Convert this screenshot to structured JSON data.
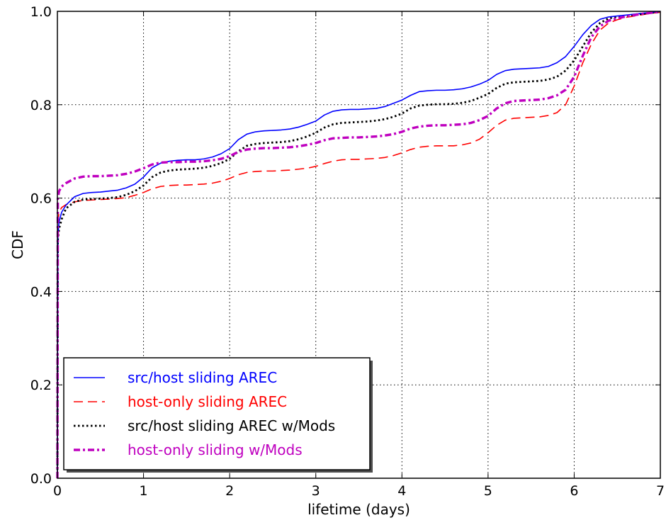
{
  "chart_data": {
    "type": "line",
    "title": "",
    "xlabel": "lifetime (days)",
    "ylabel": "CDF",
    "xlim": [
      0,
      7
    ],
    "ylim": [
      0.0,
      1.0
    ],
    "xticks": [
      "0",
      "1",
      "2",
      "3",
      "4",
      "5",
      "6",
      "7"
    ],
    "yticks": [
      "0.0",
      "0.2",
      "0.4",
      "0.6",
      "0.8",
      "1.0"
    ],
    "grid": true,
    "legend_position": "lower-left",
    "series": [
      {
        "name": "src/host sliding AREC",
        "color": "#0000ff",
        "style": "solid",
        "points": [
          [
            0,
            0.0
          ],
          [
            0.005,
            0.52
          ],
          [
            0.02,
            0.55
          ],
          [
            0.05,
            0.57
          ],
          [
            0.1,
            0.585
          ],
          [
            0.2,
            0.603
          ],
          [
            0.3,
            0.61
          ],
          [
            0.4,
            0.612
          ],
          [
            0.5,
            0.613
          ],
          [
            0.6,
            0.615
          ],
          [
            0.7,
            0.617
          ],
          [
            0.8,
            0.622
          ],
          [
            0.9,
            0.63
          ],
          [
            1.0,
            0.645
          ],
          [
            1.1,
            0.665
          ],
          [
            1.2,
            0.675
          ],
          [
            1.3,
            0.679
          ],
          [
            1.4,
            0.681
          ],
          [
            1.5,
            0.682
          ],
          [
            1.6,
            0.682
          ],
          [
            1.7,
            0.684
          ],
          [
            1.8,
            0.688
          ],
          [
            1.9,
            0.695
          ],
          [
            2.0,
            0.706
          ],
          [
            2.1,
            0.725
          ],
          [
            2.2,
            0.737
          ],
          [
            2.3,
            0.742
          ],
          [
            2.4,
            0.744
          ],
          [
            2.5,
            0.745
          ],
          [
            2.6,
            0.746
          ],
          [
            2.7,
            0.748
          ],
          [
            2.8,
            0.752
          ],
          [
            2.9,
            0.758
          ],
          [
            3.0,
            0.765
          ],
          [
            3.1,
            0.778
          ],
          [
            3.2,
            0.786
          ],
          [
            3.3,
            0.789
          ],
          [
            3.4,
            0.79
          ],
          [
            3.5,
            0.79
          ],
          [
            3.6,
            0.791
          ],
          [
            3.7,
            0.792
          ],
          [
            3.8,
            0.796
          ],
          [
            3.9,
            0.803
          ],
          [
            4.0,
            0.81
          ],
          [
            4.1,
            0.82
          ],
          [
            4.2,
            0.828
          ],
          [
            4.3,
            0.83
          ],
          [
            4.4,
            0.831
          ],
          [
            4.5,
            0.831
          ],
          [
            4.6,
            0.832
          ],
          [
            4.7,
            0.834
          ],
          [
            4.8,
            0.838
          ],
          [
            4.9,
            0.844
          ],
          [
            5.0,
            0.852
          ],
          [
            5.1,
            0.865
          ],
          [
            5.2,
            0.873
          ],
          [
            5.3,
            0.876
          ],
          [
            5.4,
            0.877
          ],
          [
            5.5,
            0.878
          ],
          [
            5.6,
            0.879
          ],
          [
            5.7,
            0.882
          ],
          [
            5.8,
            0.89
          ],
          [
            5.9,
            0.903
          ],
          [
            6.0,
            0.925
          ],
          [
            6.1,
            0.95
          ],
          [
            6.2,
            0.97
          ],
          [
            6.3,
            0.983
          ],
          [
            6.4,
            0.988
          ],
          [
            6.5,
            0.99
          ],
          [
            6.6,
            0.992
          ],
          [
            6.7,
            0.994
          ],
          [
            6.8,
            0.996
          ],
          [
            6.9,
            0.998
          ],
          [
            7.0,
            1.0
          ]
        ]
      },
      {
        "name": "host-only sliding AREC",
        "color": "#ff0000",
        "style": "dashed",
        "points": [
          [
            0,
            0.0
          ],
          [
            0.005,
            0.55
          ],
          [
            0.02,
            0.57
          ],
          [
            0.05,
            0.58
          ],
          [
            0.1,
            0.586
          ],
          [
            0.2,
            0.592
          ],
          [
            0.3,
            0.595
          ],
          [
            0.4,
            0.596
          ],
          [
            0.5,
            0.597
          ],
          [
            0.6,
            0.598
          ],
          [
            0.7,
            0.599
          ],
          [
            0.8,
            0.601
          ],
          [
            0.9,
            0.606
          ],
          [
            1.0,
            0.612
          ],
          [
            1.1,
            0.62
          ],
          [
            1.2,
            0.625
          ],
          [
            1.3,
            0.627
          ],
          [
            1.4,
            0.628
          ],
          [
            1.5,
            0.628
          ],
          [
            1.6,
            0.629
          ],
          [
            1.7,
            0.63
          ],
          [
            1.8,
            0.632
          ],
          [
            1.9,
            0.636
          ],
          [
            2.0,
            0.642
          ],
          [
            2.1,
            0.65
          ],
          [
            2.2,
            0.655
          ],
          [
            2.3,
            0.657
          ],
          [
            2.4,
            0.658
          ],
          [
            2.5,
            0.658
          ],
          [
            2.6,
            0.659
          ],
          [
            2.7,
            0.66
          ],
          [
            2.8,
            0.662
          ],
          [
            2.9,
            0.664
          ],
          [
            3.0,
            0.668
          ],
          [
            3.1,
            0.674
          ],
          [
            3.2,
            0.679
          ],
          [
            3.3,
            0.682
          ],
          [
            3.4,
            0.683
          ],
          [
            3.5,
            0.683
          ],
          [
            3.6,
            0.684
          ],
          [
            3.7,
            0.685
          ],
          [
            3.8,
            0.687
          ],
          [
            3.9,
            0.691
          ],
          [
            4.0,
            0.697
          ],
          [
            4.1,
            0.704
          ],
          [
            4.2,
            0.709
          ],
          [
            4.3,
            0.711
          ],
          [
            4.4,
            0.712
          ],
          [
            4.5,
            0.712
          ],
          [
            4.6,
            0.712
          ],
          [
            4.7,
            0.714
          ],
          [
            4.8,
            0.718
          ],
          [
            4.9,
            0.726
          ],
          [
            5.0,
            0.74
          ],
          [
            5.1,
            0.756
          ],
          [
            5.2,
            0.767
          ],
          [
            5.3,
            0.771
          ],
          [
            5.4,
            0.772
          ],
          [
            5.5,
            0.773
          ],
          [
            5.6,
            0.774
          ],
          [
            5.7,
            0.777
          ],
          [
            5.8,
            0.783
          ],
          [
            5.9,
            0.8
          ],
          [
            6.0,
            0.84
          ],
          [
            6.1,
            0.89
          ],
          [
            6.2,
            0.93
          ],
          [
            6.3,
            0.96
          ],
          [
            6.4,
            0.975
          ],
          [
            6.5,
            0.982
          ],
          [
            6.6,
            0.987
          ],
          [
            6.7,
            0.99
          ],
          [
            6.8,
            0.993
          ],
          [
            6.9,
            0.996
          ],
          [
            7.0,
            0.998
          ]
        ]
      },
      {
        "name": "src/host sliding AREC w/Mods",
        "color": "#000000",
        "style": "dotted",
        "points": [
          [
            0,
            0.0
          ],
          [
            0.005,
            0.51
          ],
          [
            0.02,
            0.535
          ],
          [
            0.05,
            0.555
          ],
          [
            0.1,
            0.578
          ],
          [
            0.2,
            0.592
          ],
          [
            0.3,
            0.597
          ],
          [
            0.4,
            0.598
          ],
          [
            0.5,
            0.599
          ],
          [
            0.6,
            0.6
          ],
          [
            0.7,
            0.602
          ],
          [
            0.8,
            0.607
          ],
          [
            0.9,
            0.615
          ],
          [
            1.0,
            0.627
          ],
          [
            1.1,
            0.645
          ],
          [
            1.2,
            0.655
          ],
          [
            1.3,
            0.659
          ],
          [
            1.4,
            0.661
          ],
          [
            1.5,
            0.662
          ],
          [
            1.6,
            0.663
          ],
          [
            1.7,
            0.665
          ],
          [
            1.8,
            0.669
          ],
          [
            1.9,
            0.675
          ],
          [
            2.0,
            0.684
          ],
          [
            2.1,
            0.7
          ],
          [
            2.2,
            0.712
          ],
          [
            2.3,
            0.716
          ],
          [
            2.4,
            0.718
          ],
          [
            2.5,
            0.719
          ],
          [
            2.6,
            0.72
          ],
          [
            2.7,
            0.722
          ],
          [
            2.8,
            0.726
          ],
          [
            2.9,
            0.732
          ],
          [
            3.0,
            0.74
          ],
          [
            3.1,
            0.751
          ],
          [
            3.2,
            0.758
          ],
          [
            3.3,
            0.761
          ],
          [
            3.4,
            0.762
          ],
          [
            3.5,
            0.763
          ],
          [
            3.6,
            0.764
          ],
          [
            3.7,
            0.766
          ],
          [
            3.8,
            0.769
          ],
          [
            3.9,
            0.774
          ],
          [
            4.0,
            0.781
          ],
          [
            4.1,
            0.792
          ],
          [
            4.2,
            0.798
          ],
          [
            4.3,
            0.8
          ],
          [
            4.4,
            0.801
          ],
          [
            4.5,
            0.801
          ],
          [
            4.6,
            0.802
          ],
          [
            4.7,
            0.804
          ],
          [
            4.8,
            0.808
          ],
          [
            4.9,
            0.815
          ],
          [
            5.0,
            0.823
          ],
          [
            5.1,
            0.836
          ],
          [
            5.2,
            0.845
          ],
          [
            5.3,
            0.848
          ],
          [
            5.4,
            0.849
          ],
          [
            5.5,
            0.85
          ],
          [
            5.6,
            0.851
          ],
          [
            5.7,
            0.854
          ],
          [
            5.8,
            0.86
          ],
          [
            5.9,
            0.873
          ],
          [
            6.0,
            0.895
          ],
          [
            6.1,
            0.925
          ],
          [
            6.2,
            0.955
          ],
          [
            6.3,
            0.975
          ],
          [
            6.4,
            0.985
          ],
          [
            6.5,
            0.988
          ],
          [
            6.6,
            0.99
          ],
          [
            6.7,
            0.993
          ],
          [
            6.8,
            0.995
          ],
          [
            6.9,
            0.997
          ],
          [
            7.0,
            0.999
          ]
        ]
      },
      {
        "name": "host-only sliding w/Mods",
        "color": "#bf00bf",
        "style": "dashdot",
        "points": [
          [
            0,
            0.0
          ],
          [
            0.005,
            0.6
          ],
          [
            0.02,
            0.615
          ],
          [
            0.05,
            0.625
          ],
          [
            0.1,
            0.632
          ],
          [
            0.2,
            0.642
          ],
          [
            0.3,
            0.646
          ],
          [
            0.4,
            0.647
          ],
          [
            0.5,
            0.647
          ],
          [
            0.6,
            0.648
          ],
          [
            0.7,
            0.649
          ],
          [
            0.8,
            0.652
          ],
          [
            0.9,
            0.657
          ],
          [
            1.0,
            0.664
          ],
          [
            1.1,
            0.672
          ],
          [
            1.2,
            0.676
          ],
          [
            1.3,
            0.677
          ],
          [
            1.4,
            0.677
          ],
          [
            1.5,
            0.678
          ],
          [
            1.6,
            0.678
          ],
          [
            1.7,
            0.679
          ],
          [
            1.8,
            0.681
          ],
          [
            1.9,
            0.684
          ],
          [
            2.0,
            0.69
          ],
          [
            2.1,
            0.699
          ],
          [
            2.2,
            0.704
          ],
          [
            2.3,
            0.706
          ],
          [
            2.4,
            0.707
          ],
          [
            2.5,
            0.707
          ],
          [
            2.6,
            0.708
          ],
          [
            2.7,
            0.709
          ],
          [
            2.8,
            0.711
          ],
          [
            2.9,
            0.714
          ],
          [
            3.0,
            0.718
          ],
          [
            3.1,
            0.724
          ],
          [
            3.2,
            0.728
          ],
          [
            3.3,
            0.729
          ],
          [
            3.4,
            0.73
          ],
          [
            3.5,
            0.73
          ],
          [
            3.6,
            0.731
          ],
          [
            3.7,
            0.732
          ],
          [
            3.8,
            0.734
          ],
          [
            3.9,
            0.737
          ],
          [
            4.0,
            0.742
          ],
          [
            4.1,
            0.749
          ],
          [
            4.2,
            0.753
          ],
          [
            4.3,
            0.755
          ],
          [
            4.4,
            0.756
          ],
          [
            4.5,
            0.756
          ],
          [
            4.6,
            0.757
          ],
          [
            4.7,
            0.758
          ],
          [
            4.8,
            0.761
          ],
          [
            4.9,
            0.767
          ],
          [
            5.0,
            0.776
          ],
          [
            5.1,
            0.792
          ],
          [
            5.2,
            0.803
          ],
          [
            5.3,
            0.808
          ],
          [
            5.4,
            0.809
          ],
          [
            5.5,
            0.81
          ],
          [
            5.6,
            0.811
          ],
          [
            5.7,
            0.814
          ],
          [
            5.8,
            0.82
          ],
          [
            5.9,
            0.832
          ],
          [
            6.0,
            0.86
          ],
          [
            6.1,
            0.905
          ],
          [
            6.2,
            0.945
          ],
          [
            6.3,
            0.968
          ],
          [
            6.4,
            0.98
          ],
          [
            6.5,
            0.985
          ],
          [
            6.6,
            0.989
          ],
          [
            6.7,
            0.992
          ],
          [
            6.8,
            0.995
          ],
          [
            6.9,
            0.997
          ],
          [
            7.0,
            0.999
          ]
        ]
      }
    ]
  }
}
